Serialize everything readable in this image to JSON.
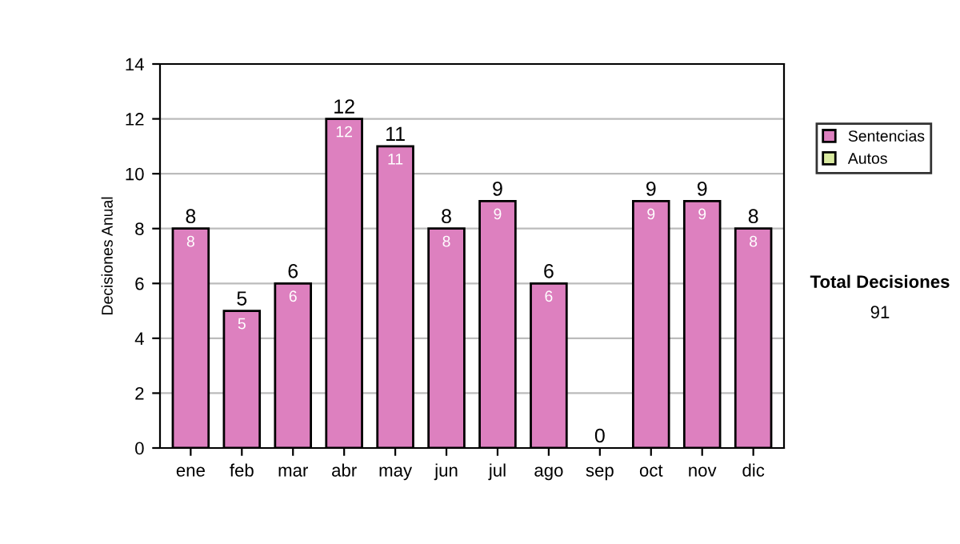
{
  "chart_data": {
    "type": "bar",
    "stacked": true,
    "ylabel": "Decisiones Anual",
    "categories": [
      "ene",
      "feb",
      "mar",
      "abr",
      "may",
      "jun",
      "jul",
      "ago",
      "sep",
      "oct",
      "nov",
      "dic"
    ],
    "series": [
      {
        "name": "Sentencias",
        "color": "#dd80bf",
        "values": [
          8,
          5,
          6,
          12,
          11,
          8,
          9,
          6,
          0,
          9,
          9,
          8
        ],
        "value_labels": [
          "8",
          "5",
          "6",
          "12",
          "11",
          "8",
          "9",
          "6",
          null,
          "9",
          "9",
          "8"
        ]
      },
      {
        "name": "Autos",
        "color": "#d9eaa0",
        "values": [
          0,
          0,
          0,
          0,
          0,
          0,
          0,
          0,
          0,
          0,
          0,
          0
        ]
      }
    ],
    "totals": [
      "8",
      "5",
      "6",
      "12",
      "11",
      "8",
      "9",
      "6",
      "0",
      "9",
      "9",
      "8"
    ],
    "ylim": [
      0,
      14
    ],
    "yticks": [
      0,
      2,
      4,
      6,
      8,
      10,
      12,
      14
    ],
    "grid": "y",
    "legend": "right",
    "annotations": [
      "Total Decisiones",
      "91"
    ]
  }
}
